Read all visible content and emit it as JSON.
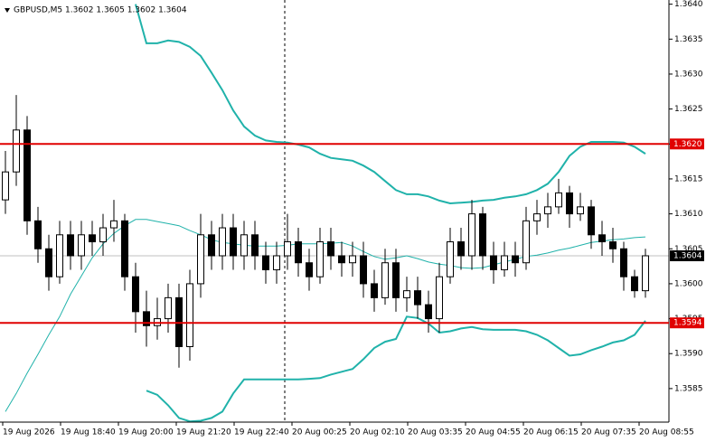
{
  "chart_data": {
    "type": "candlestick",
    "title": "GBPUSD,M5  1.3602 1.3605 1.3602 1.3604",
    "xlabels": [
      "19 Aug 2026",
      "19 Aug 18:40",
      "19 Aug 20:00",
      "19 Aug 21:20",
      "19 Aug 22:40",
      "20 Aug 00:25",
      "20 Aug 02:10",
      "20 Aug 03:35",
      "20 Aug 04:55",
      "20 Aug 06:15",
      "20 Aug 07:35",
      "20 Aug 08:55"
    ],
    "open": [
      1.3612,
      1.3616,
      1.3622,
      1.3609,
      1.3605,
      1.3601,
      1.3607,
      1.3604,
      1.3607,
      1.3606,
      1.3608,
      1.3609,
      1.3601,
      1.3596,
      1.3594,
      1.3595,
      1.3598,
      1.3591,
      1.36,
      1.3607,
      1.3604,
      1.3608,
      1.3604,
      1.3607,
      1.3604,
      1.3602,
      1.3604,
      1.3606,
      1.3603,
      1.3601,
      1.3606,
      1.3604,
      1.3603,
      1.3604,
      1.36,
      1.3598,
      1.3603,
      1.3598,
      1.3599,
      1.3597,
      1.3595,
      1.3601,
      1.3606,
      1.3604,
      1.361,
      1.3604,
      1.3602,
      1.3604,
      1.3603,
      1.3609,
      1.361,
      1.3611,
      1.3613,
      1.361,
      1.3611,
      1.3607,
      1.3606,
      1.3605,
      1.3601,
      1.3599
    ],
    "high": [
      1.3619,
      1.3627,
      1.3624,
      1.3611,
      1.3607,
      1.3609,
      1.3609,
      1.3609,
      1.3609,
      1.361,
      1.3612,
      1.361,
      1.3603,
      1.3599,
      1.3598,
      1.36,
      1.36,
      1.3602,
      1.361,
      1.3609,
      1.361,
      1.361,
      1.3609,
      1.3609,
      1.3606,
      1.3606,
      1.361,
      1.3608,
      1.3605,
      1.3608,
      1.3608,
      1.3606,
      1.3606,
      1.3606,
      1.3602,
      1.3605,
      1.3605,
      1.3601,
      1.3601,
      1.3599,
      1.3603,
      1.3608,
      1.3608,
      1.3612,
      1.3611,
      1.3606,
      1.3606,
      1.3606,
      1.3611,
      1.3612,
      1.3613,
      1.3615,
      1.3614,
      1.3613,
      1.3612,
      1.3609,
      1.3608,
      1.3606,
      1.3602,
      1.3605
    ],
    "low": [
      1.361,
      1.3614,
      1.3607,
      1.3603,
      1.3599,
      1.36,
      1.3602,
      1.3602,
      1.3604,
      1.3604,
      1.3606,
      1.3599,
      1.3593,
      1.3591,
      1.3592,
      1.3593,
      1.3588,
      1.3589,
      1.3598,
      1.3602,
      1.3602,
      1.3602,
      1.3602,
      1.3602,
      1.36,
      1.36,
      1.3602,
      1.3601,
      1.3599,
      1.36,
      1.3602,
      1.3601,
      1.3601,
      1.3598,
      1.3596,
      1.3597,
      1.3596,
      1.3596,
      1.3595,
      1.3593,
      1.3593,
      1.36,
      1.3602,
      1.3602,
      1.3602,
      1.36,
      1.3601,
      1.3601,
      1.3602,
      1.3607,
      1.3608,
      1.361,
      1.3608,
      1.3609,
      1.3605,
      1.3604,
      1.3603,
      1.3599,
      1.3598,
      1.3598
    ],
    "close": [
      1.3616,
      1.3622,
      1.3609,
      1.3605,
      1.3601,
      1.3607,
      1.3604,
      1.3607,
      1.3606,
      1.3608,
      1.3609,
      1.3601,
      1.3596,
      1.3594,
      1.3595,
      1.3598,
      1.3591,
      1.36,
      1.3607,
      1.3604,
      1.3608,
      1.3604,
      1.3607,
      1.3604,
      1.3602,
      1.3604,
      1.3606,
      1.3603,
      1.3601,
      1.3606,
      1.3604,
      1.3603,
      1.3604,
      1.36,
      1.3598,
      1.3603,
      1.3598,
      1.3599,
      1.3597,
      1.3595,
      1.3601,
      1.3606,
      1.3604,
      1.361,
      1.3604,
      1.3602,
      1.3604,
      1.3603,
      1.3609,
      1.361,
      1.3611,
      1.3613,
      1.361,
      1.3611,
      1.3607,
      1.3606,
      1.3605,
      1.3601,
      1.3599,
      1.3604
    ],
    "up_color": "#ffffff",
    "down_color": "#000000",
    "indicator_lines": [
      {
        "color": "#20b2aa",
        "width": 2,
        "values": [
          null,
          null,
          null,
          null,
          null,
          null,
          null,
          null,
          null,
          null,
          null,
          null,
          1.364,
          1.36344,
          1.36344,
          1.36348,
          1.36346,
          1.36339,
          1.36326,
          1.36302,
          1.36277,
          1.36248,
          1.36225,
          1.36212,
          1.36205,
          1.36203,
          1.36202,
          1.36199,
          1.36195,
          1.36186,
          1.3618,
          1.36178,
          1.36176,
          1.36169,
          1.3616,
          1.36147,
          1.36134,
          1.36128,
          1.36128,
          1.36125,
          1.36119,
          1.36115,
          1.36116,
          1.36117,
          1.36119,
          1.3612,
          1.36123,
          1.36125,
          1.36128,
          1.36134,
          1.36143,
          1.3616,
          1.36183,
          1.36196,
          1.36203,
          1.36203,
          1.36203,
          1.36202,
          1.36196,
          1.36186
        ]
      },
      {
        "color": "#20b2aa",
        "width": 1,
        "values": [
          1.35817,
          1.35843,
          1.35872,
          1.35899,
          1.35927,
          1.35953,
          1.35985,
          1.36011,
          1.36037,
          1.36057,
          1.36072,
          1.36083,
          1.36092,
          1.36092,
          1.36089,
          1.36086,
          1.36083,
          1.36076,
          1.3607,
          1.36063,
          1.36059,
          1.36057,
          1.36055,
          1.36054,
          1.36054,
          1.36054,
          1.36055,
          1.36057,
          1.36057,
          1.36057,
          1.36058,
          1.36059,
          1.36054,
          1.36046,
          1.36039,
          1.36035,
          1.36037,
          1.3604,
          1.36036,
          1.36031,
          1.36028,
          1.36026,
          1.36023,
          1.36022,
          1.36023,
          1.36027,
          1.36031,
          1.36035,
          1.36039,
          1.36041,
          1.36044,
          1.36048,
          1.36051,
          1.36055,
          1.36059,
          1.36061,
          1.36063,
          1.36064,
          1.36066,
          1.36067
        ]
      },
      {
        "color": "#20b2aa",
        "width": 2,
        "values": [
          null,
          null,
          null,
          null,
          null,
          null,
          null,
          null,
          null,
          null,
          null,
          null,
          null,
          1.35847,
          1.35841,
          1.35826,
          1.35808,
          1.35803,
          1.35804,
          1.35808,
          1.35817,
          1.35843,
          1.35863,
          1.35863,
          1.35863,
          1.35863,
          1.35863,
          1.35863,
          1.35864,
          1.35865,
          1.3587,
          1.35874,
          1.35878,
          1.35892,
          1.35908,
          1.35917,
          1.35921,
          1.35953,
          1.35951,
          1.35943,
          1.3593,
          1.35932,
          1.35936,
          1.35938,
          1.35935,
          1.35934,
          1.35934,
          1.35934,
          1.35932,
          1.35927,
          1.35919,
          1.35908,
          1.35897,
          1.35899,
          1.35905,
          1.3591,
          1.35916,
          1.35919,
          1.35927,
          1.35947
        ]
      }
    ],
    "levels": [
      {
        "value": 1.362,
        "label": "1.3620"
      },
      {
        "value": 1.35944,
        "label": "1.3594"
      }
    ],
    "level_color": "#e00000",
    "current_price": {
      "value": 1.3604,
      "label": "1.3604"
    },
    "ylim": [
      1.35802,
      1.36406
    ],
    "yticks": [
      {
        "value": 1.364,
        "label": "1.3640"
      },
      1.3635,
      {
        "value": 1.363,
        "label": "1.3630"
      },
      1.3625,
      {
        "value": 1.362,
        "label": "1.3620"
      },
      1.3615,
      {
        "value": 1.361,
        "label": "1.3610"
      },
      1.3605,
      {
        "value": 1.36,
        "label": "1.3600"
      },
      1.3595,
      {
        "value": 1.359,
        "label": "1.3590"
      },
      1.3585
    ],
    "grid": false
  }
}
